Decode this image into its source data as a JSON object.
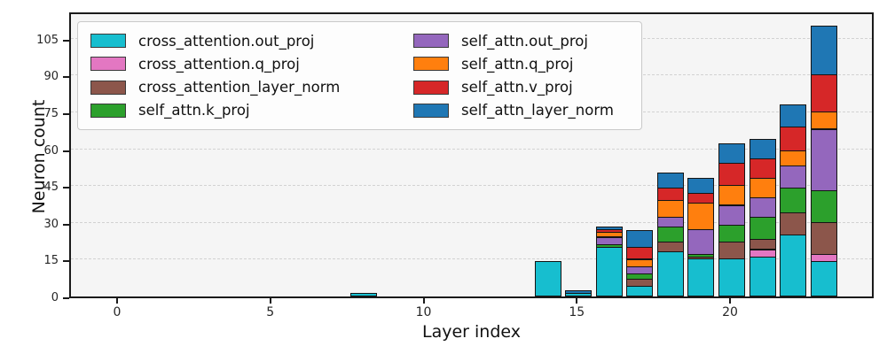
{
  "chart_data": {
    "type": "bar",
    "stacked": true,
    "title": "",
    "xlabel": "Layer index",
    "ylabel": "Neuron count",
    "x": [
      0,
      1,
      2,
      3,
      4,
      5,
      6,
      7,
      8,
      9,
      10,
      11,
      12,
      13,
      14,
      15,
      16,
      17,
      18,
      19,
      20,
      21,
      22,
      23
    ],
    "xticks": [
      0,
      5,
      10,
      15,
      20
    ],
    "yticks": [
      0,
      15,
      30,
      45,
      60,
      75,
      90,
      105
    ],
    "ylim": [
      0,
      116
    ],
    "grid": "horizontal-dashed",
    "plot_background": "#f5f5f5",
    "legend_position": "upper-left",
    "legend_columns": 2,
    "series": [
      {
        "name": "cross_attention.out_proj",
        "color": "#17becf",
        "values": [
          0,
          0,
          0,
          0,
          0,
          0,
          0,
          0,
          1,
          0,
          0,
          0,
          0,
          0,
          14,
          1,
          20,
          4,
          18,
          15,
          15,
          16,
          25,
          14
        ]
      },
      {
        "name": "cross_attention.q_proj",
        "color": "#e377c2",
        "values": [
          0,
          0,
          0,
          0,
          0,
          0,
          0,
          0,
          0,
          0,
          0,
          0,
          0,
          0,
          0,
          0,
          0,
          0,
          0,
          0,
          0,
          3,
          0,
          3
        ]
      },
      {
        "name": "cross_attention_layer_norm",
        "color": "#8c564b",
        "values": [
          0,
          0,
          0,
          0,
          0,
          0,
          0,
          0,
          0,
          0,
          0,
          0,
          0,
          0,
          0,
          0,
          0,
          3,
          4,
          1,
          7,
          4,
          9,
          13
        ]
      },
      {
        "name": "self_attn.k_proj",
        "color": "#2ca02c",
        "values": [
          0,
          0,
          0,
          0,
          0,
          0,
          0,
          0,
          0,
          0,
          0,
          0,
          0,
          0,
          0,
          0,
          1,
          2,
          6,
          1,
          7,
          9,
          10,
          13
        ]
      },
      {
        "name": "self_attn.out_proj",
        "color": "#9467bd",
        "values": [
          0,
          0,
          0,
          0,
          0,
          0,
          0,
          0,
          0,
          0,
          0,
          0,
          0,
          0,
          0,
          0,
          3,
          3,
          4,
          10,
          8,
          8,
          9,
          25
        ]
      },
      {
        "name": "self_attn.q_proj",
        "color": "#ff7f0e",
        "values": [
          0,
          0,
          0,
          0,
          0,
          0,
          0,
          0,
          0,
          0,
          0,
          0,
          0,
          0,
          0,
          0,
          2,
          3,
          7,
          11,
          8,
          8,
          6,
          7
        ]
      },
      {
        "name": "self_attn.v_proj",
        "color": "#d62728",
        "values": [
          0,
          0,
          0,
          0,
          0,
          0,
          0,
          0,
          0,
          0,
          0,
          0,
          0,
          0,
          0,
          0,
          1,
          5,
          5,
          4,
          9,
          8,
          10,
          15
        ]
      },
      {
        "name": "self_attn_layer_norm",
        "color": "#1f77b4",
        "values": [
          0,
          0,
          0,
          0,
          0,
          0,
          0,
          0,
          0,
          0,
          0,
          0,
          0,
          0,
          0,
          1,
          1,
          7,
          6,
          6,
          8,
          8,
          9,
          20
        ]
      }
    ],
    "bar_totals": [
      0,
      0,
      0,
      0,
      0,
      0,
      0,
      0,
      1,
      0,
      0,
      0,
      0,
      0,
      14,
      2,
      28,
      27,
      50,
      48,
      62,
      64,
      78,
      110
    ]
  }
}
